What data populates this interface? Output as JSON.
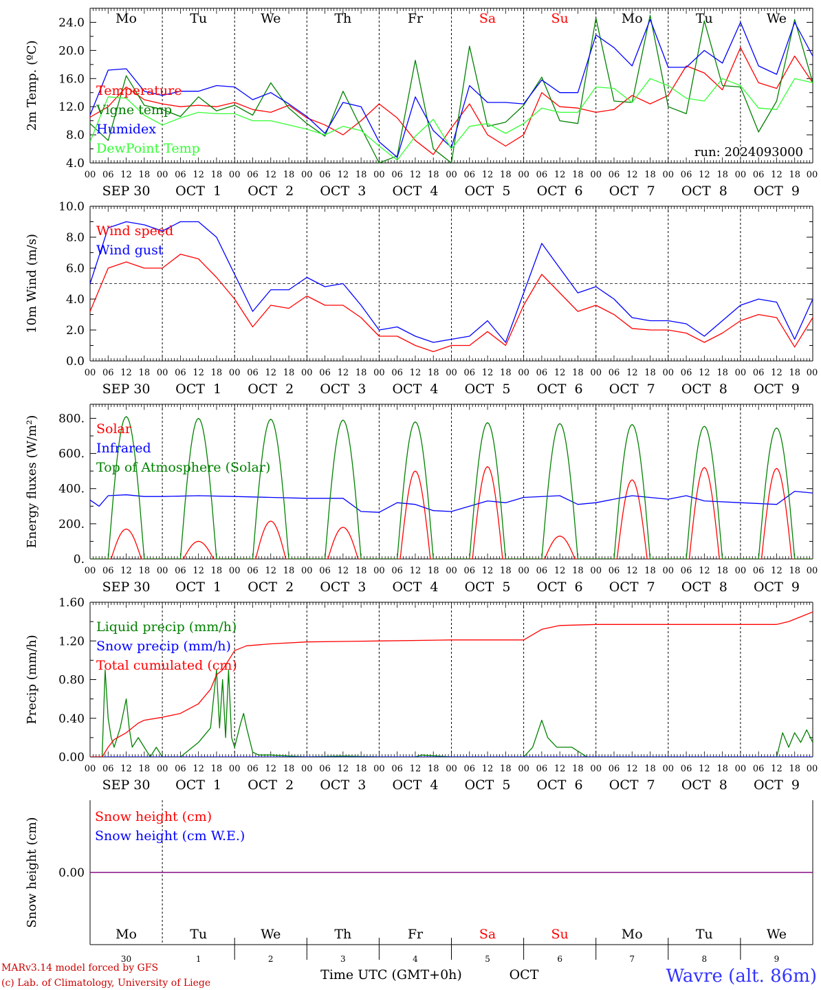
{
  "colors": {
    "red": "#ff0000",
    "blue": "#0000ff",
    "dark_green": "#008000",
    "light_green": "#33ff33",
    "dark_red": "#cc0000",
    "purple": "#800080",
    "axis": "#000000"
  },
  "days": [
    {
      "abbr": "Mo",
      "date_label": "SEP 30",
      "day_num": "30",
      "weekend": false
    },
    {
      "abbr": "Tu",
      "date_label": "OCT  1",
      "day_num": "1",
      "weekend": false
    },
    {
      "abbr": "We",
      "date_label": "OCT  2",
      "day_num": "2",
      "weekend": false
    },
    {
      "abbr": "Th",
      "date_label": "OCT  3",
      "day_num": "3",
      "weekend": false
    },
    {
      "abbr": "Fr",
      "date_label": "OCT  4",
      "day_num": "4",
      "weekend": false
    },
    {
      "abbr": "Sa",
      "date_label": "OCT  5",
      "day_num": "5",
      "weekend": true
    },
    {
      "abbr": "Su",
      "date_label": "OCT  6",
      "day_num": "6",
      "weekend": true
    },
    {
      "abbr": "Mo",
      "date_label": "OCT  7",
      "day_num": "7",
      "weekend": false
    },
    {
      "abbr": "Tu",
      "date_label": "OCT  8",
      "day_num": "8",
      "weekend": false
    },
    {
      "abbr": "We",
      "date_label": "OCT  9",
      "day_num": "9",
      "weekend": false
    }
  ],
  "hour_labels": [
    "00",
    "06",
    "12",
    "18"
  ],
  "final_hour_label": "00",
  "footer": {
    "model_credit": "MARv3.14 model forced by GFS",
    "lab_credit": "(c) Lab. of Climatology, University of Liege",
    "time_axis_label": "Time UTC (GMT+0h)",
    "month_label": "OCT",
    "station_label": "Wavre (alt. 86m)"
  },
  "chart_data": [
    {
      "type": "line",
      "x_unit": "hours since 2024-09-30 00 UTC",
      "ylabel": "2m Temp. (ºC)",
      "ylim": [
        4.0,
        26.0
      ],
      "yticks": [
        4.0,
        8.0,
        12.0,
        16.0,
        20.0,
        24.0
      ],
      "ytick_labels": [
        "4.0",
        "8.0",
        "12.0",
        "16.0",
        "20.0",
        "24.0"
      ],
      "annotation": "run: 2024093000",
      "series": [
        {
          "name": "Temperature",
          "color": "#ff0000",
          "x": [
            0,
            6,
            12,
            18,
            24,
            30,
            36,
            42,
            48,
            54,
            60,
            66,
            72,
            78,
            84,
            90,
            96,
            102,
            108,
            114,
            120,
            126,
            132,
            138,
            144,
            150,
            156,
            162,
            168,
            174,
            180,
            186,
            192,
            198,
            204,
            210,
            216,
            222,
            228,
            234,
            240
          ],
          "y": [
            10.5,
            12.0,
            14.8,
            13.0,
            12.4,
            12.0,
            12.2,
            12.0,
            12.6,
            11.6,
            11.2,
            12.2,
            10.4,
            9.4,
            8.0,
            10.0,
            12.4,
            10.4,
            7.2,
            5.2,
            9.0,
            12.4,
            8.0,
            6.4,
            8.0,
            14.0,
            12.0,
            11.8,
            11.2,
            11.6,
            13.6,
            12.4,
            13.6,
            17.8,
            16.8,
            14.4,
            20.4,
            15.4,
            14.6,
            19.2,
            15.4
          ]
        },
        {
          "name": "Vigne temp",
          "color": "#008000",
          "x": [
            0,
            6,
            12,
            18,
            24,
            30,
            36,
            42,
            48,
            54,
            60,
            66,
            72,
            78,
            84,
            90,
            96,
            102,
            108,
            114,
            120,
            126,
            132,
            138,
            144,
            150,
            156,
            162,
            168,
            174,
            180,
            186,
            192,
            198,
            204,
            210,
            216,
            222,
            228,
            234,
            240
          ],
          "y": [
            9.6,
            7.2,
            16.4,
            12.2,
            11.6,
            10.6,
            13.4,
            11.4,
            12.2,
            10.8,
            15.4,
            11.8,
            9.6,
            7.8,
            14.2,
            9.0,
            4.0,
            5.0,
            18.6,
            6.0,
            4.0,
            20.6,
            9.2,
            9.8,
            12.2,
            16.2,
            10.0,
            9.6,
            24.6,
            12.8,
            12.6,
            25.0,
            12.0,
            11.0,
            24.2,
            15.0,
            14.8,
            8.4,
            12.8,
            24.4,
            15.4
          ]
        },
        {
          "name": "Humidex",
          "color": "#0000ff",
          "x": [
            0,
            6,
            12,
            18,
            24,
            30,
            36,
            42,
            48,
            54,
            60,
            66,
            72,
            78,
            84,
            90,
            96,
            102,
            108,
            114,
            120,
            126,
            132,
            138,
            144,
            150,
            156,
            162,
            168,
            174,
            180,
            186,
            192,
            198,
            204,
            210,
            216,
            222,
            228,
            234,
            240
          ],
          "y": [
            10.8,
            17.2,
            17.4,
            14.2,
            13.6,
            14.2,
            14.2,
            15.0,
            14.8,
            13.0,
            14.0,
            12.4,
            10.6,
            8.2,
            12.6,
            12.0,
            7.0,
            4.8,
            13.4,
            8.6,
            6.2,
            15.0,
            12.6,
            12.6,
            12.4,
            15.8,
            14.0,
            14.0,
            22.2,
            20.4,
            17.8,
            24.4,
            17.6,
            17.6,
            20.0,
            18.2,
            24.0,
            17.8,
            16.6,
            24.0,
            19.2
          ]
        },
        {
          "name": "DewPoint Temp",
          "color": "#33ff33",
          "x": [
            0,
            6,
            12,
            18,
            24,
            30,
            36,
            42,
            48,
            54,
            60,
            66,
            72,
            78,
            84,
            90,
            96,
            102,
            108,
            114,
            120,
            126,
            132,
            138,
            144,
            150,
            156,
            162,
            168,
            174,
            180,
            186,
            192,
            198,
            204,
            210,
            216,
            222,
            228,
            234,
            240
          ],
          "y": [
            7.0,
            13.4,
            13.2,
            10.8,
            9.4,
            10.4,
            11.2,
            11.0,
            11.0,
            10.0,
            10.0,
            9.4,
            8.8,
            8.0,
            9.2,
            8.6,
            6.4,
            4.4,
            7.8,
            10.2,
            6.0,
            9.2,
            9.6,
            8.2,
            9.6,
            11.8,
            11.2,
            11.2,
            14.8,
            14.6,
            12.6,
            16.0,
            15.0,
            13.2,
            12.8,
            16.0,
            15.0,
            11.8,
            11.6,
            16.0,
            15.4
          ]
        }
      ]
    },
    {
      "type": "line",
      "x_unit": "hours since 2024-09-30 00 UTC",
      "ylabel": "10m Wind (m/s)",
      "ylim": [
        0.0,
        10.0
      ],
      "yticks": [
        0.0,
        2.0,
        4.0,
        6.0,
        8.0,
        10.0
      ],
      "ytick_labels": [
        "0.0",
        "2.0",
        "4.0",
        "6.0",
        "8.0",
        "10.0"
      ],
      "reference_line_y": 5.0,
      "series": [
        {
          "name": "Wind speed",
          "color": "#ff0000",
          "x": [
            0,
            6,
            12,
            18,
            24,
            30,
            36,
            42,
            48,
            54,
            60,
            66,
            72,
            78,
            84,
            90,
            96,
            102,
            108,
            114,
            120,
            126,
            132,
            138,
            144,
            150,
            156,
            162,
            168,
            174,
            180,
            186,
            192,
            198,
            204,
            210,
            216,
            222,
            228,
            234,
            240
          ],
          "y": [
            3.2,
            6.0,
            6.4,
            6.0,
            6.0,
            6.9,
            6.6,
            5.4,
            4.0,
            2.2,
            3.6,
            3.4,
            4.2,
            3.6,
            3.6,
            2.8,
            1.6,
            1.6,
            1.0,
            0.6,
            1.0,
            1.0,
            1.9,
            1.0,
            3.6,
            5.6,
            4.4,
            3.2,
            3.6,
            3.0,
            2.1,
            2.0,
            2.0,
            1.8,
            1.2,
            1.8,
            2.6,
            3.0,
            2.8,
            0.9,
            2.8
          ]
        },
        {
          "name": "Wind gust",
          "color": "#0000ff",
          "x": [
            0,
            6,
            12,
            18,
            24,
            30,
            36,
            42,
            48,
            54,
            60,
            66,
            72,
            78,
            84,
            90,
            96,
            102,
            108,
            114,
            120,
            126,
            132,
            138,
            144,
            150,
            156,
            162,
            168,
            174,
            180,
            186,
            192,
            198,
            204,
            210,
            216,
            222,
            228,
            234,
            240
          ],
          "y": [
            5.0,
            8.6,
            9.0,
            8.8,
            8.4,
            9.0,
            9.0,
            8.0,
            5.6,
            3.2,
            4.6,
            4.6,
            5.4,
            4.8,
            5.0,
            3.6,
            2.0,
            2.2,
            1.6,
            1.2,
            1.4,
            1.6,
            2.6,
            1.2,
            4.4,
            7.6,
            6.0,
            4.4,
            4.8,
            4.0,
            2.8,
            2.6,
            2.6,
            2.4,
            1.6,
            2.6,
            3.6,
            4.0,
            3.8,
            1.4,
            4.0
          ]
        }
      ]
    },
    {
      "type": "line",
      "x_unit": "hours since 2024-09-30 00 UTC",
      "ylabel": "Energy fluxes (W/m²)",
      "ylim": [
        0,
        880
      ],
      "yticks": [
        0,
        200,
        400,
        600,
        800
      ],
      "ytick_labels": [
        "0.",
        "200.",
        "400.",
        "600.",
        "800."
      ],
      "series": [
        {
          "name": "Solar",
          "color": "#ff0000",
          "daily_peaks": [
            170,
            100,
            215,
            180,
            500,
            525,
            130,
            450,
            520,
            515
          ]
        },
        {
          "name": "Infrared",
          "color": "#0000ff",
          "x": [
            0,
            3,
            6,
            12,
            18,
            24,
            36,
            48,
            60,
            72,
            84,
            90,
            96,
            102,
            108,
            114,
            120,
            132,
            138,
            144,
            156,
            162,
            168,
            180,
            192,
            198,
            204,
            216,
            228,
            234,
            240
          ],
          "y": [
            335,
            300,
            360,
            365,
            355,
            355,
            360,
            355,
            350,
            345,
            345,
            270,
            265,
            320,
            310,
            275,
            270,
            330,
            320,
            350,
            360,
            310,
            320,
            360,
            340,
            360,
            330,
            320,
            310,
            385,
            375
          ]
        },
        {
          "name": "Top of Atmosphere (Solar)",
          "color": "#008000",
          "daily_peaks": [
            810,
            800,
            795,
            790,
            780,
            775,
            770,
            765,
            755,
            745
          ]
        }
      ]
    },
    {
      "type": "line",
      "x_unit": "hours since 2024-09-30 00 UTC",
      "ylabel": "Precip (mm/h)",
      "ylim": [
        0.0,
        1.6
      ],
      "yticks": [
        0.0,
        0.4,
        0.8,
        1.2,
        1.6
      ],
      "ytick_labels": [
        "0.00",
        "0.40",
        "0.80",
        "1.20",
        "1.60"
      ],
      "series": [
        {
          "name": "Liquid precip (mm/h)",
          "color": "#008000",
          "x": [
            0,
            4,
            5,
            6,
            7,
            8,
            10,
            12,
            13,
            14,
            16,
            18,
            20,
            22,
            24,
            30,
            36,
            40,
            41,
            42,
            43,
            44,
            45,
            46,
            47,
            48,
            50,
            51,
            52,
            54,
            56,
            60,
            66,
            72,
            84,
            96,
            108,
            110,
            120,
            144,
            147,
            150,
            152,
            155,
            160,
            165,
            168,
            200,
            210,
            228,
            230,
            232,
            234,
            236,
            238,
            240
          ],
          "y": [
            0,
            0,
            0.9,
            0.4,
            0.2,
            0.1,
            0.3,
            0.6,
            0.3,
            0.1,
            0.2,
            0.1,
            0.0,
            0.1,
            0.0,
            0.0,
            0.15,
            0.3,
            0.6,
            0.9,
            0.3,
            0.8,
            0.2,
            0.9,
            0.2,
            0.1,
            0.35,
            0.45,
            0.3,
            0.05,
            0.02,
            0.02,
            0.01,
            0.0,
            0.01,
            0.0,
            0.0,
            0.02,
            0.0,
            0.0,
            0.1,
            0.38,
            0.2,
            0.1,
            0.1,
            0.0,
            0.0,
            0.0,
            0.0,
            0.0,
            0.25,
            0.1,
            0.25,
            0.15,
            0.28,
            0.15
          ]
        },
        {
          "name": "Snow precip (mm/h)",
          "color": "#0000ff",
          "x": [
            0,
            240
          ],
          "y": [
            0.0,
            0.0
          ]
        },
        {
          "name": "Total cumulated (cm)",
          "color": "#ff0000",
          "x": [
            0,
            4,
            6,
            8,
            12,
            16,
            18,
            24,
            30,
            36,
            40,
            42,
            44,
            48,
            52,
            60,
            72,
            96,
            120,
            144,
            150,
            156,
            168,
            180,
            192,
            228,
            232,
            236,
            240
          ],
          "y": [
            0,
            0,
            0.1,
            0.18,
            0.25,
            0.35,
            0.38,
            0.41,
            0.45,
            0.55,
            0.7,
            0.85,
            0.9,
            1.1,
            1.15,
            1.17,
            1.19,
            1.2,
            1.21,
            1.21,
            1.32,
            1.36,
            1.37,
            1.37,
            1.37,
            1.37,
            1.4,
            1.45,
            1.5
          ]
        }
      ]
    },
    {
      "type": "line",
      "x_unit": "hours since 2024-09-30 00 UTC",
      "ylabel": "Snow height (cm)",
      "ylim": [
        -0.04,
        0.04
      ],
      "yticks": [
        0.0
      ],
      "ytick_labels": [
        "0.00"
      ],
      "series": [
        {
          "name": "Snow height (cm)",
          "color": "#ff0000",
          "x": [
            0,
            240
          ],
          "y": [
            0.0,
            0.0
          ]
        },
        {
          "name": "Snow height (cm W.E.)",
          "color": "#0000ff",
          "x": [
            0,
            240
          ],
          "y": [
            0.0,
            0.0
          ]
        }
      ]
    }
  ]
}
